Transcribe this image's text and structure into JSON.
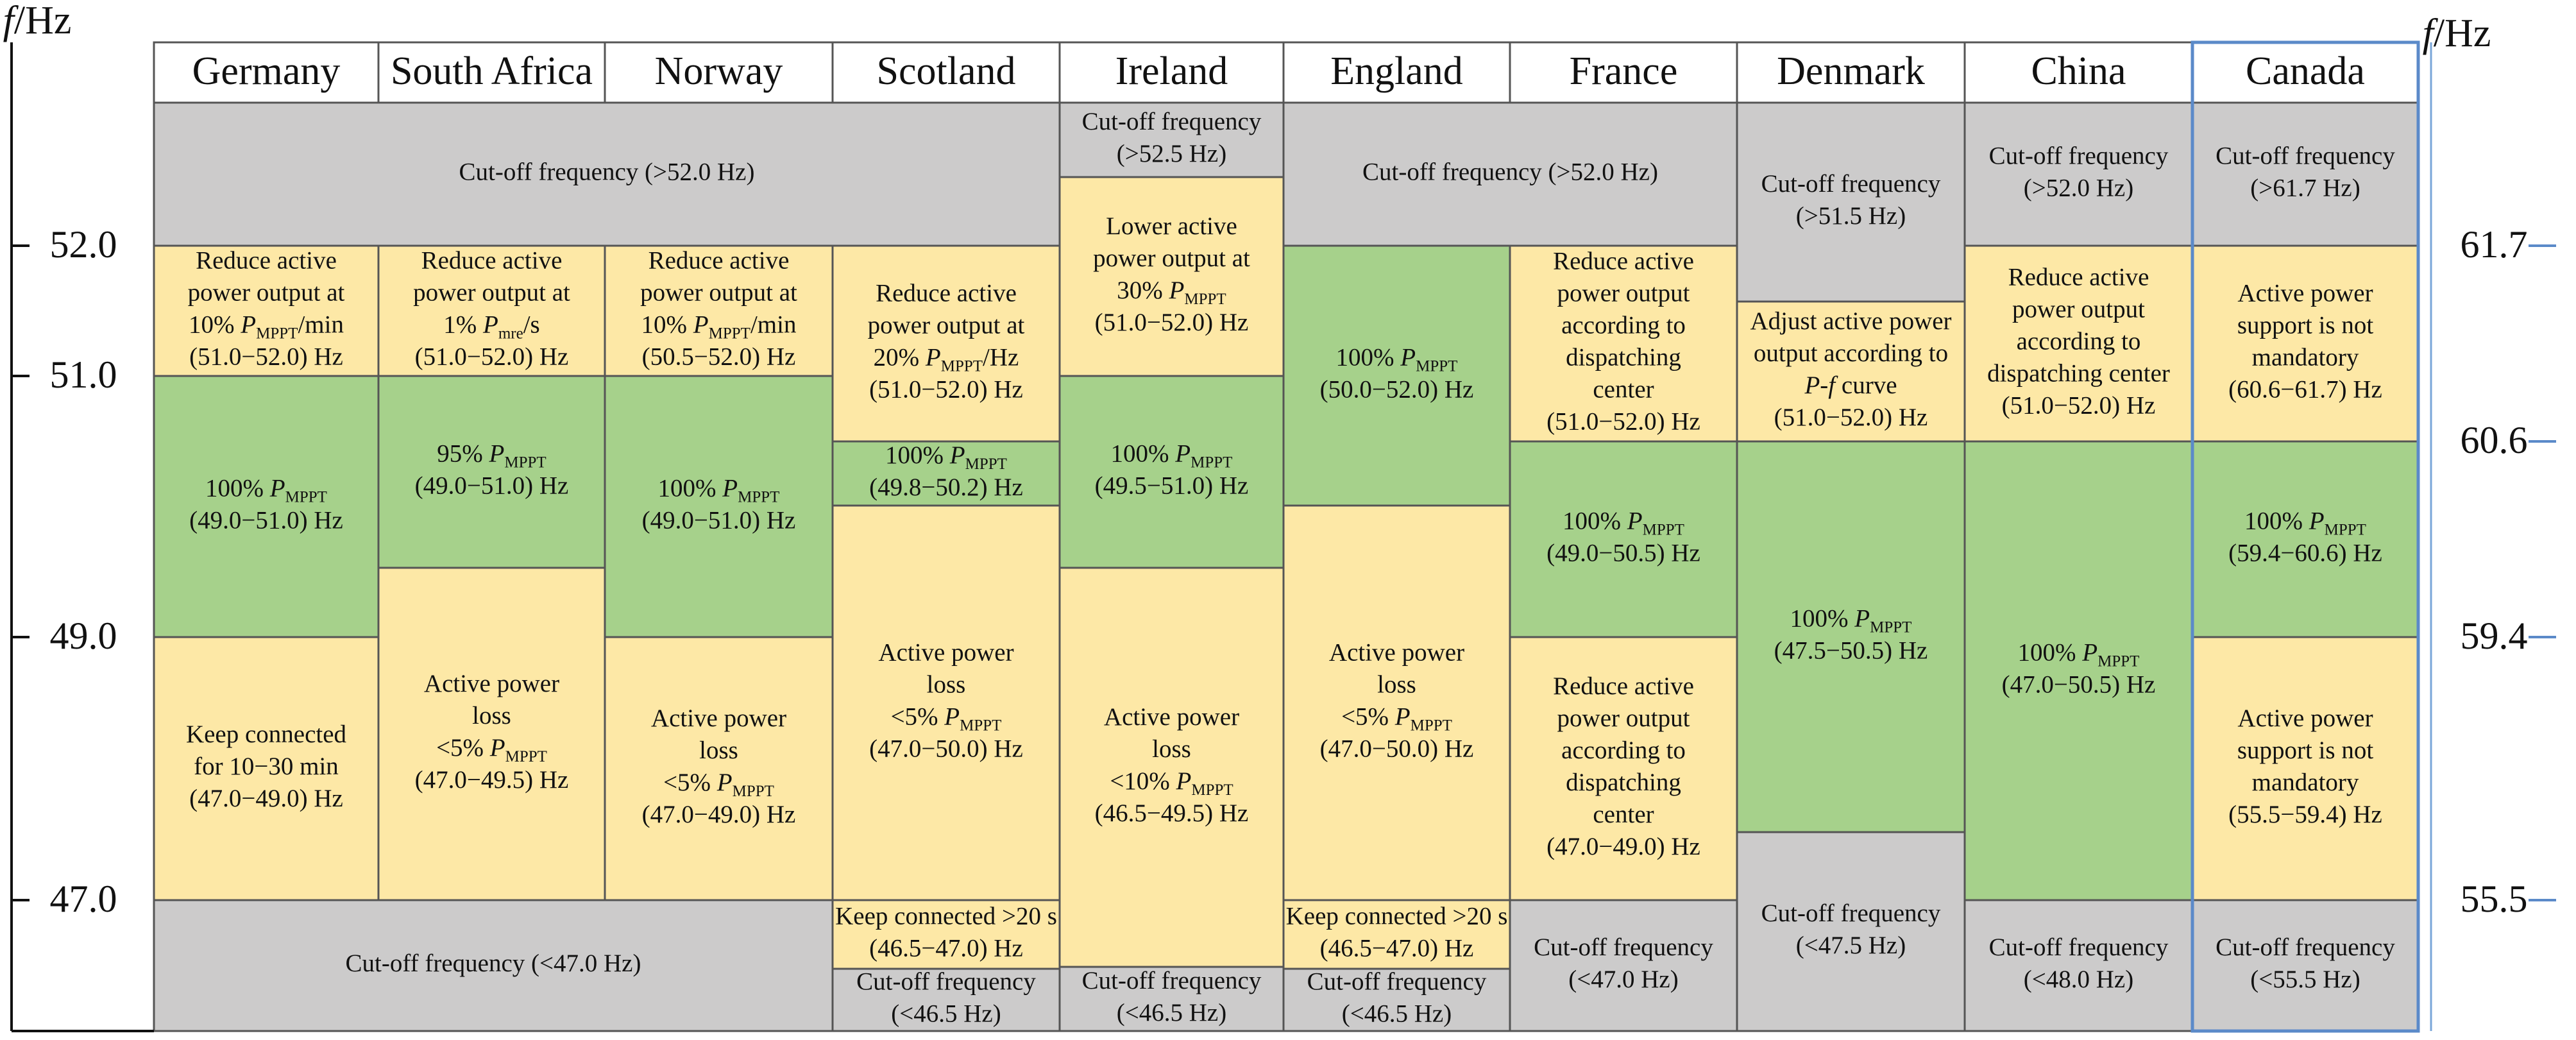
{
  "axis": {
    "left_title": "f/Hz",
    "right_title": "f/Hz",
    "left_ticks": [
      "52.0",
      "51.0",
      "49.0",
      "47.0"
    ],
    "right_ticks": [
      "61.7",
      "60.6",
      "59.4",
      "55.5"
    ]
  },
  "colors": {
    "cutoff_gray": "#cccbcb",
    "reduce_yellow": "#fde8a6",
    "normal_green": "#a6d18b",
    "loss_yellow": "#fde8a6",
    "canada_border": "#5b8ac9",
    "grid_line": "#555555"
  },
  "countries": [
    "Germany",
    "South Africa",
    "Norway",
    "Scotland",
    "Ireland",
    "England",
    "France",
    "Denmark",
    "China",
    "Canada"
  ],
  "cells": {
    "cut_above_52_merged": [
      "Cut-off frequency (>52.0 Hz)"
    ],
    "cut_below_47_merged": [
      "Cut-off frequency (<47.0 Hz)"
    ],
    "germany": {
      "reduce": [
        "Reduce active",
        "power output at",
        "10% P|MPPT|/min",
        "(51.0−52.0) Hz"
      ],
      "normal": [
        "100% P|MPPT",
        "(49.0−51.0) Hz"
      ],
      "low": [
        "Keep connected",
        "for 10−30 min",
        "(47.0−49.0) Hz"
      ]
    },
    "south_africa": {
      "reduce": [
        "Reduce active",
        "power output at",
        "1% P|mre|/s",
        "(51.0−52.0) Hz"
      ],
      "normal": [
        "95% P|MPPT",
        "(49.0−51.0) Hz"
      ],
      "low": [
        "Active power",
        "loss",
        "<5% P|MPPT",
        "(47.0−49.5) Hz"
      ]
    },
    "norway": {
      "reduce": [
        "Reduce active",
        "power output at",
        "10% P|MPPT|/min",
        "(50.5−52.0) Hz"
      ],
      "normal": [
        "100% P|MPPT",
        "(49.0−51.0) Hz"
      ],
      "low": [
        "Active power",
        "loss",
        "<5% P|MPPT",
        "(47.0−49.0) Hz"
      ]
    },
    "scotland": {
      "reduce": [
        "Reduce active",
        "power output at",
        "20% P|MPPT|/Hz",
        "(51.0−52.0) Hz"
      ],
      "normal": [
        "100% P|MPPT",
        "(49.8−50.2) Hz"
      ],
      "low": [
        "Active power",
        "loss",
        "<5% P|MPPT",
        "(47.0−50.0) Hz"
      ],
      "keep": [
        "Keep connected >20 s",
        "(46.5−47.0) Hz"
      ],
      "cut_low": [
        "Cut-off frequency",
        "(<46.5 Hz)"
      ]
    },
    "ireland": {
      "cut_high": [
        "Cut-off frequency",
        "(>52.5 Hz)"
      ],
      "reduce": [
        "Lower active",
        "power output at",
        "30% P|MPPT",
        "(51.0−52.0) Hz"
      ],
      "normal": [
        "100% P|MPPT",
        "(49.5−51.0) Hz"
      ],
      "low": [
        "Active power",
        "loss",
        "<10% P|MPPT",
        "(46.5−49.5) Hz"
      ],
      "cut_low": [
        "Cut-off frequency",
        "(<46.5 Hz)"
      ]
    },
    "england": {
      "normal": [
        "100% P|MPPT",
        "(50.0−52.0) Hz"
      ],
      "low": [
        "Active power",
        "loss",
        "<5% P|MPPT",
        "(47.0−50.0) Hz"
      ],
      "keep": [
        "Keep connected >20 s",
        "(46.5−47.0) Hz"
      ],
      "cut_low": [
        "Cut-off frequency",
        "(<46.5 Hz)"
      ]
    },
    "france": {
      "reduce": [
        "Reduce active",
        "power output",
        "according to",
        "dispatching",
        "center",
        "(51.0−52.0) Hz"
      ],
      "normal": [
        "100% P|MPPT",
        "(49.0−50.5) Hz"
      ],
      "low": [
        "Reduce active",
        "power output",
        "according to",
        "dispatching",
        "center",
        "(47.0−49.0) Hz"
      ],
      "cut_low": [
        "Cut-off frequency",
        "(<47.0 Hz)"
      ]
    },
    "denmark": {
      "cut_high": [
        "Cut-off frequency",
        "(>51.5 Hz)"
      ],
      "reduce": [
        "Adjust active power",
        "output according to",
        "P-f curve",
        "(51.0−52.0) Hz"
      ],
      "normal": [
        "100% P|MPPT",
        "(47.5−50.5) Hz"
      ],
      "cut_low": [
        "Cut-off frequency",
        "(<47.5 Hz)"
      ]
    },
    "china": {
      "cut_high": [
        "Cut-off frequency",
        "(>52.0 Hz)"
      ],
      "reduce": [
        "Reduce active",
        "power output",
        "according to",
        "dispatching center",
        "(51.0−52.0) Hz"
      ],
      "normal": [
        "100% P|MPPT",
        "(47.0−50.5) Hz"
      ],
      "cut_low": [
        "Cut-off frequency",
        "(<48.0 Hz)"
      ]
    },
    "canada": {
      "cut_high": [
        "Cut-off frequency",
        "(>61.7 Hz)"
      ],
      "reduce": [
        "Active power",
        "support is not",
        "mandatory",
        "(60.6−61.7) Hz"
      ],
      "normal": [
        "100% P|MPPT",
        "(59.4−60.6) Hz"
      ],
      "low": [
        "Active power",
        "support is not",
        "mandatory",
        "(55.5−59.4) Hz"
      ],
      "cut_low": [
        "Cut-off frequency",
        "(<55.5 Hz)"
      ]
    }
  }
}
